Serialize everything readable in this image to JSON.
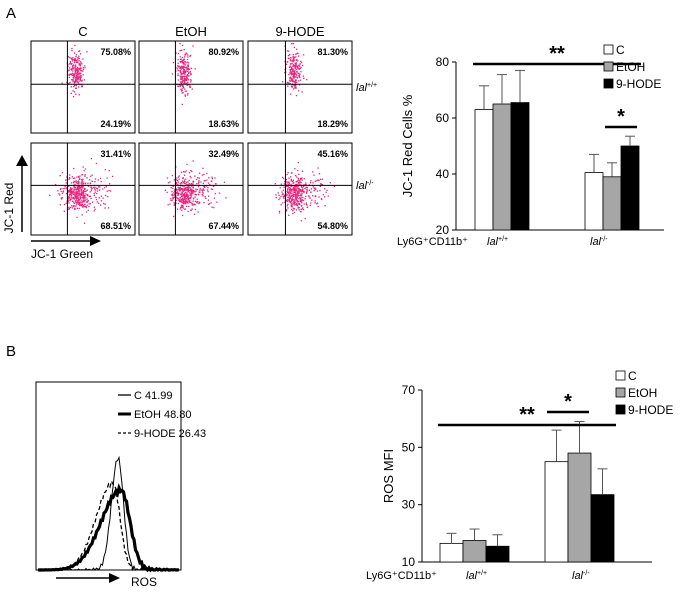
{
  "panels": {
    "a": {
      "letter": "A"
    },
    "b": {
      "letter": "B"
    }
  },
  "flow": {
    "columns": [
      "C",
      "EtOH",
      "9-HODE"
    ],
    "rows": [
      {
        "genotype_base": "lal",
        "genotype_sup": "+/+",
        "cells": [
          {
            "upper": "75.08%",
            "lower": "24.19%"
          },
          {
            "upper": "80.92%",
            "lower": "18.63%"
          },
          {
            "upper": "81.30%",
            "lower": "18.29%"
          }
        ]
      },
      {
        "genotype_base": "lal",
        "genotype_sup": "-/-",
        "cells": [
          {
            "upper": "31.41%",
            "lower": "68.51%"
          },
          {
            "upper": "32.49%",
            "lower": "67.44%"
          },
          {
            "upper": "45.16%",
            "lower": "54.80%"
          }
        ]
      }
    ],
    "y_axis_label": "JC-1 Red",
    "x_axis_label": "JC-1 Green",
    "dot_color": "#e8247d"
  },
  "histogram": {
    "legend": [
      {
        "label": "C 41.99",
        "style": "thin"
      },
      {
        "label": "EtOH 48.80",
        "style": "thick"
      },
      {
        "label": "9-HODE 26.43",
        "style": "dashed"
      }
    ],
    "x_axis_label": "ROS"
  },
  "chart_data": [
    {
      "type": "bar",
      "panel": "A",
      "ylabel": "JC-1 Red Cells %",
      "ylim": [
        20,
        80
      ],
      "yticks": [
        20,
        40,
        60,
        80
      ],
      "group_prefix": "Ly6G⁺CD11b⁺",
      "categories": [
        {
          "base": "lal",
          "sup": "+/+"
        },
        {
          "base": "lal",
          "sup": "-/-"
        }
      ],
      "series": [
        {
          "name": "C",
          "color": "#ffffff",
          "values": [
            63,
            40.5
          ],
          "errors": [
            8.5,
            6.5
          ]
        },
        {
          "name": "EtOH",
          "color": "#a6a6a6",
          "values": [
            65,
            39
          ],
          "errors": [
            10.5,
            5
          ]
        },
        {
          "name": "9-HODE",
          "color": "#000000",
          "values": [
            65.5,
            50
          ],
          "errors": [
            11.5,
            3.5
          ]
        }
      ],
      "significance": [
        {
          "label": "**",
          "from_group": 0,
          "to_group": 1
        },
        {
          "label": "*",
          "group": 1,
          "from_series": 1,
          "to_series": 2
        }
      ],
      "legend_position": "top-right"
    },
    {
      "type": "bar",
      "panel": "B",
      "ylabel": "ROS MFI",
      "ylim": [
        10,
        70
      ],
      "yticks": [
        10,
        30,
        50,
        70
      ],
      "group_prefix": "Ly6G⁺CD11b⁺",
      "categories": [
        {
          "base": "lal",
          "sup": "+/+"
        },
        {
          "base": "lal",
          "sup": "-/-"
        }
      ],
      "series": [
        {
          "name": "C",
          "color": "#ffffff",
          "values": [
            16.5,
            45
          ],
          "errors": [
            3.5,
            11
          ]
        },
        {
          "name": "EtOH",
          "color": "#a6a6a6",
          "values": [
            17.5,
            48
          ],
          "errors": [
            4,
            11
          ]
        },
        {
          "name": "9-HODE",
          "color": "#000000",
          "values": [
            15.5,
            33.5
          ],
          "errors": [
            4,
            9
          ]
        }
      ],
      "significance": [
        {
          "label": "**",
          "from_group": 0,
          "to_group": 1
        },
        {
          "label": "*",
          "group": 1,
          "from_series": 0,
          "to_series": 1
        }
      ],
      "legend_position": "top-right"
    }
  ]
}
